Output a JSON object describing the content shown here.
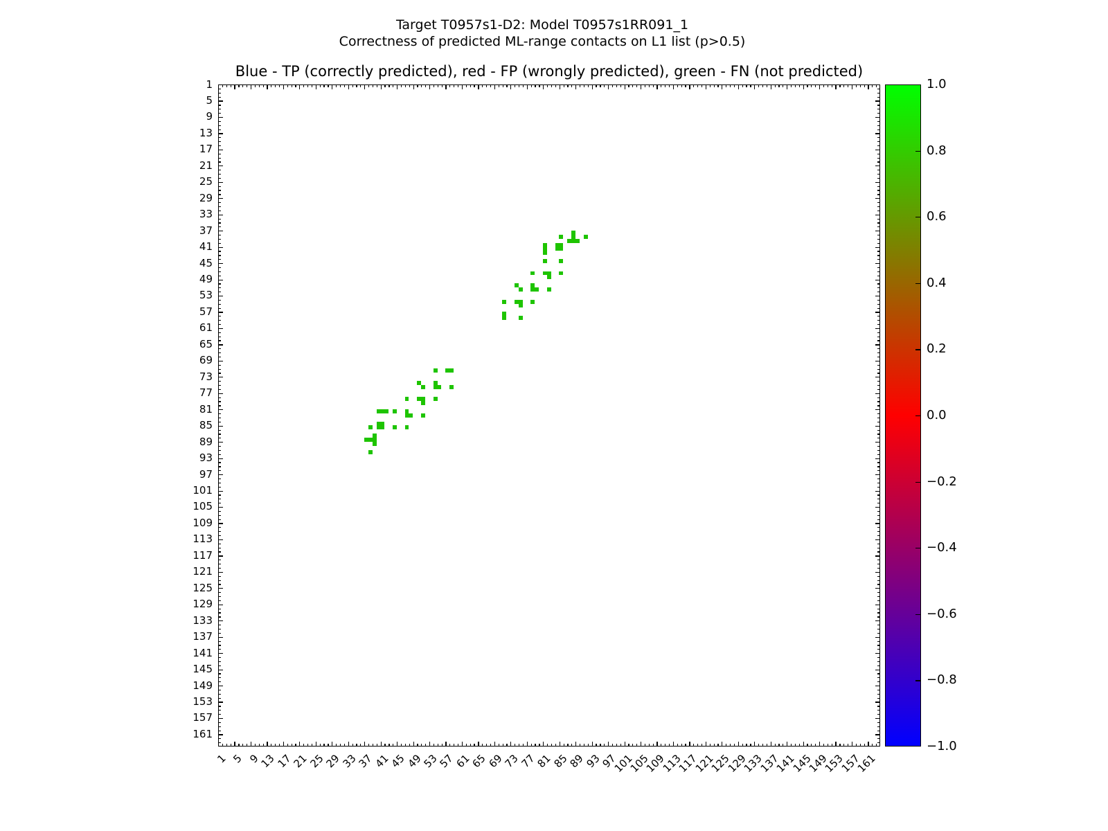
{
  "header": {
    "suptitle_line1": "Target T0957s1-D2: Model T0957s1RR091_1",
    "suptitle_line2": "Correctness of predicted ML-range contacts on L1 list (p>0.5)",
    "axes_title": "Blue - TP (correctly predicted), red - FP (wrongly predicted), green - FN (not predicted)"
  },
  "chart_data": {
    "type": "heatmap",
    "title": "Target T0957s1-D2: Model T0957s1RR091_1",
    "subtitle": "Correctness of predicted ML-range contacts on L1 list (p>0.5)",
    "axes_title": "Blue - TP (correctly predicted), red - FP (wrongly predicted), green - FN (not predicted)",
    "legend_semantics": {
      "blue": "TP (correctly predicted)",
      "red": "FP (wrongly predicted)",
      "green": "FN (not predicted)"
    },
    "axis_range": [
      1,
      164
    ],
    "y_axis_inverted": true,
    "grid": false,
    "x_tick_labels": [
      1,
      5,
      9,
      13,
      17,
      21,
      25,
      29,
      33,
      37,
      41,
      45,
      49,
      53,
      57,
      61,
      65,
      69,
      73,
      77,
      81,
      85,
      89,
      93,
      97,
      101,
      105,
      109,
      113,
      117,
      121,
      125,
      129,
      133,
      137,
      141,
      145,
      149,
      153,
      157,
      161
    ],
    "y_tick_labels": [
      1,
      5,
      9,
      13,
      17,
      21,
      25,
      29,
      33,
      37,
      41,
      45,
      49,
      53,
      57,
      61,
      65,
      69,
      73,
      77,
      81,
      85,
      89,
      93,
      97,
      101,
      105,
      109,
      113,
      117,
      121,
      125,
      129,
      133,
      137,
      141,
      145,
      149,
      153,
      157,
      161
    ],
    "minor_tick_step": 1,
    "major_tick_step": 4,
    "fn_color": "#1ec400",
    "tp_points": [],
    "fp_points": [],
    "fn_points": [
      [
        54,
        71
      ],
      [
        57,
        71
      ],
      [
        58,
        71
      ],
      [
        50,
        74
      ],
      [
        54,
        74
      ],
      [
        51,
        75
      ],
      [
        54,
        75
      ],
      [
        55,
        75
      ],
      [
        58,
        75
      ],
      [
        47,
        78
      ],
      [
        50,
        78
      ],
      [
        51,
        78
      ],
      [
        54,
        78
      ],
      [
        51,
        79
      ],
      [
        40,
        81
      ],
      [
        41,
        81
      ],
      [
        42,
        81
      ],
      [
        44,
        81
      ],
      [
        47,
        81
      ],
      [
        47,
        82
      ],
      [
        48,
        82
      ],
      [
        51,
        82
      ],
      [
        40,
        84
      ],
      [
        41,
        84
      ],
      [
        38,
        85
      ],
      [
        40,
        85
      ],
      [
        41,
        85
      ],
      [
        44,
        85
      ],
      [
        47,
        85
      ],
      [
        39,
        87
      ],
      [
        37,
        88
      ],
      [
        38,
        88
      ],
      [
        39,
        88
      ],
      [
        39,
        89
      ],
      [
        38,
        91
      ],
      [
        71,
        54
      ],
      [
        71,
        57
      ],
      [
        71,
        58
      ],
      [
        74,
        50
      ],
      [
        74,
        54
      ],
      [
        75,
        51
      ],
      [
        75,
        54
      ],
      [
        75,
        55
      ],
      [
        75,
        58
      ],
      [
        78,
        47
      ],
      [
        78,
        50
      ],
      [
        78,
        51
      ],
      [
        78,
        54
      ],
      [
        79,
        51
      ],
      [
        81,
        40
      ],
      [
        81,
        41
      ],
      [
        81,
        42
      ],
      [
        81,
        44
      ],
      [
        81,
        47
      ],
      [
        82,
        47
      ],
      [
        82,
        48
      ],
      [
        82,
        51
      ],
      [
        84,
        40
      ],
      [
        84,
        41
      ],
      [
        85,
        38
      ],
      [
        85,
        40
      ],
      [
        85,
        41
      ],
      [
        85,
        44
      ],
      [
        85,
        47
      ],
      [
        87,
        39
      ],
      [
        88,
        37
      ],
      [
        88,
        38
      ],
      [
        88,
        39
      ],
      [
        89,
        39
      ],
      [
        91,
        38
      ]
    ],
    "colorbar": {
      "tick_labels": [
        "1.0",
        "0.8",
        "0.6",
        "0.4",
        "0.2",
        "0.0",
        "−0.2",
        "−0.4",
        "−0.6",
        "−0.8",
        "−1.0"
      ],
      "tick_values": [
        1.0,
        0.8,
        0.6,
        0.4,
        0.2,
        0.0,
        -0.2,
        -0.4,
        -0.6,
        -0.8,
        -1.0
      ],
      "range": [
        -1.0,
        1.0
      ],
      "colormap": "brg",
      "gradient_top": "#00ff00",
      "gradient_mid": "#ff0000",
      "gradient_bottom": "#0000ff"
    }
  }
}
